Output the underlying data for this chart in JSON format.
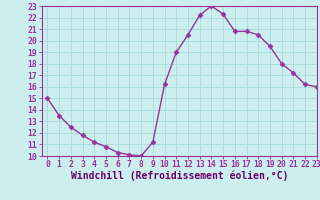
{
  "x": [
    0,
    1,
    2,
    3,
    4,
    5,
    6,
    7,
    8,
    9,
    10,
    11,
    12,
    13,
    14,
    15,
    16,
    17,
    18,
    19,
    20,
    21,
    22,
    23
  ],
  "y": [
    15,
    13.5,
    12.5,
    11.8,
    11.2,
    10.8,
    10.3,
    10.1,
    10.0,
    11.2,
    16.2,
    19.0,
    20.5,
    22.2,
    23.0,
    22.3,
    20.8,
    20.8,
    20.5,
    19.5,
    18.0,
    17.2,
    16.2,
    16.0
  ],
  "line_color": "#993399",
  "marker": "D",
  "marker_size": 2.5,
  "bg_color": "#cceeee",
  "grid_color": "#aadddd",
  "xlabel": "Windchill (Refroidissement éolien,°C)",
  "ylim": [
    10,
    23
  ],
  "xlim": [
    -0.5,
    23
  ],
  "yticks": [
    10,
    11,
    12,
    13,
    14,
    15,
    16,
    17,
    18,
    19,
    20,
    21,
    22,
    23
  ],
  "xticks": [
    0,
    1,
    2,
    3,
    4,
    5,
    6,
    7,
    8,
    9,
    10,
    11,
    12,
    13,
    14,
    15,
    16,
    17,
    18,
    19,
    20,
    21,
    22,
    23
  ],
  "tick_label_fontsize": 5.8,
  "xlabel_fontsize": 7.0,
  "line_width": 1.0,
  "spine_color": "#993399",
  "tick_color": "#660066",
  "label_color": "#660066"
}
